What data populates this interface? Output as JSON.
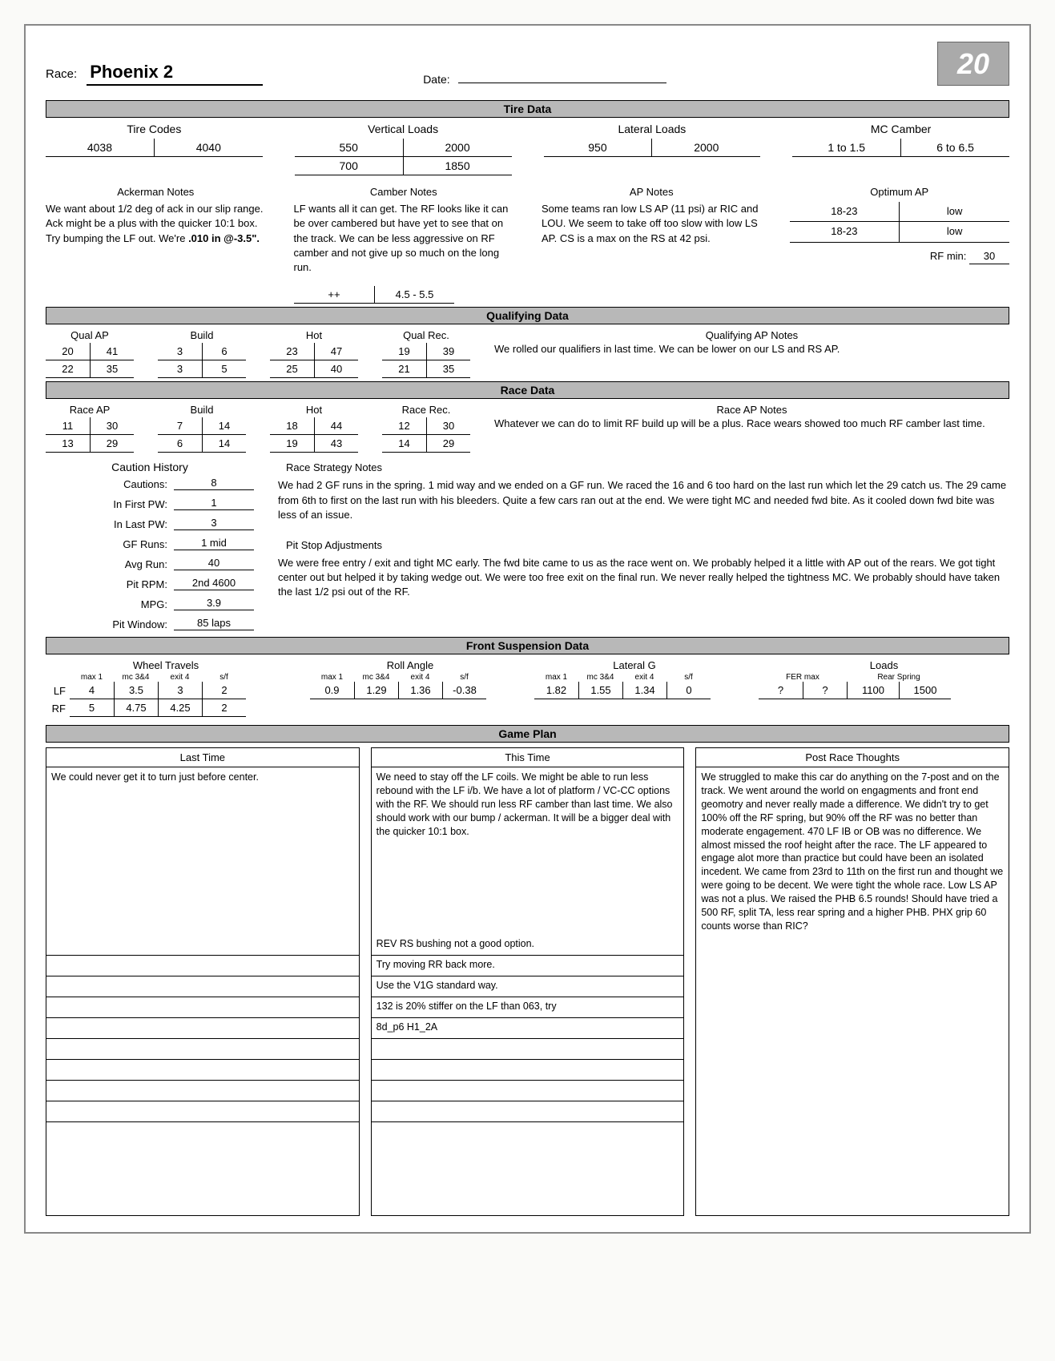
{
  "header": {
    "race_label": "Race:",
    "race_name": "Phoenix 2",
    "date_label": "Date:",
    "date_value": "",
    "car_number": "20"
  },
  "tire": {
    "section_title": "Tire Data",
    "tire_codes_title": "Tire Codes",
    "tire_codes": [
      "4038",
      "4040"
    ],
    "vertical_loads_title": "Vertical Loads",
    "vertical_loads": [
      [
        "550",
        "2000"
      ],
      [
        "700",
        "1850"
      ]
    ],
    "lateral_loads_title": "Lateral Loads",
    "lateral_loads": [
      "950",
      "2000"
    ],
    "camber_title": "MC Camber",
    "camber": [
      "1 to 1.5",
      "6 to 6.5"
    ],
    "ack_title": "Ackerman Notes",
    "ack_body": "We want about 1/2 deg of ack in our slip range. Ack might be a plus with the quicker 10:1 box. Try bumping the LF out. We're ",
    "ack_bold": ".010 in @-3.5\".",
    "cam_title": "Camber Notes",
    "cam_body": "LF wants all it can get. The RF looks like it can be over cambered but have yet to see that on the track. We can be less aggressive on RF camber and not give up so much on the long run.",
    "ap_title": "AP Notes",
    "ap_body": "Some teams ran low LS AP (11 psi) ar RIC and LOU. We seem to take off too slow with low LS AP.  CS is a max on the RS at 42 psi.",
    "optap_title": "Optimum AP",
    "optap": [
      [
        "18-23",
        "low"
      ],
      [
        "18-23",
        "low"
      ]
    ],
    "rfmin_label": "RF min:",
    "rfmin_value": "30",
    "plusplus": [
      "++",
      "4.5 - 5.5"
    ]
  },
  "qual": {
    "title": "Qualifying Data",
    "ap_title": "Qual AP",
    "ap": [
      [
        "20",
        "41"
      ],
      [
        "22",
        "35"
      ]
    ],
    "build_title": "Build",
    "build": [
      [
        "3",
        "6"
      ],
      [
        "3",
        "5"
      ]
    ],
    "hot_title": "Hot",
    "hot": [
      [
        "23",
        "47"
      ],
      [
        "25",
        "40"
      ]
    ],
    "rec_title": "Qual Rec.",
    "rec": [
      [
        "19",
        "39"
      ],
      [
        "21",
        "35"
      ]
    ],
    "notes_title": "Qualifying AP Notes",
    "notes": "We rolled our qualifiers in last time. We can be lower on our LS and RS AP."
  },
  "race": {
    "title": "Race Data",
    "ap_title": "Race AP",
    "ap": [
      [
        "11",
        "30"
      ],
      [
        "13",
        "29"
      ]
    ],
    "build_title": "Build",
    "build": [
      [
        "7",
        "14"
      ],
      [
        "6",
        "14"
      ]
    ],
    "hot_title": "Hot",
    "hot": [
      [
        "18",
        "44"
      ],
      [
        "19",
        "43"
      ]
    ],
    "rec_title": "Race Rec.",
    "rec": [
      [
        "12",
        "30"
      ],
      [
        "14",
        "29"
      ]
    ],
    "notes_title": "Race AP Notes",
    "notes": "Whatever we can do to limit RF build up will be a plus. Race wears showed too much RF camber last time."
  },
  "caution": {
    "title": "Caution History",
    "rows": [
      {
        "label": "Cautions:",
        "value": "8"
      },
      {
        "label": "In First PW:",
        "value": "1"
      },
      {
        "label": "In Last PW:",
        "value": "3"
      },
      {
        "label": "GF Runs:",
        "value": "1 mid"
      },
      {
        "label": "Avg Run:",
        "value": "40"
      },
      {
        "label": "Pit RPM:",
        "value": "2nd 4600"
      },
      {
        "label": "MPG:",
        "value": "3.9"
      },
      {
        "label": "Pit Window:",
        "value": "85 laps"
      }
    ],
    "strat_title": "Race Strategy Notes",
    "strat_body": "We had 2 GF runs in the spring. 1 mid way and we ended on a GF run. We raced the 16 and 6 too hard on the last run which let the 29 catch us. The 29 came from 6th to first on the last run with his bleeders. Quite a few cars ran out at the end. We were tight MC and needed fwd bite. As it cooled down fwd bite was less of an issue.",
    "pit_title": "Pit Stop Adjustments",
    "pit_body": "We were free entry / exit and tight MC early. The fwd bite came to us as the race went on. We probably helped it a little with AP out of the rears. We got tight center out but helped it by taking wedge out. We were too free exit on the final run. We never really helped the tightness MC. We probably should have taken the last 1/2 psi out of the RF."
  },
  "susp": {
    "title": "Front Suspension Data",
    "wheel_title": "Wheel Travels",
    "wheel_heads": [
      "max 1",
      "mc 3&4",
      "exit 4",
      "s/f"
    ],
    "wheel_lf_label": "LF",
    "wheel_rf_label": "RF",
    "wheel_lf": [
      "4",
      "3.5",
      "3",
      "2"
    ],
    "wheel_rf": [
      "5",
      "4.75",
      "4.25",
      "2"
    ],
    "roll_title": "Roll Angle",
    "roll_heads": [
      "max 1",
      "mc 3&4",
      "exit 4",
      "s/f"
    ],
    "roll": [
      "0.9",
      "1.29",
      "1.36",
      "-0.38"
    ],
    "lat_title": "Lateral G",
    "lat_heads": [
      "max 1",
      "mc 3&4",
      "exit 4",
      "s/f"
    ],
    "lat": [
      "1.82",
      "1.55",
      "1.34",
      "0"
    ],
    "loads_title": "Loads",
    "loads_heads": [
      "FER max",
      "",
      "Rear Spring",
      ""
    ],
    "loads": [
      "?",
      "?",
      "1100",
      "1500"
    ]
  },
  "game": {
    "title": "Game Plan",
    "last_title": "Last Time",
    "last_body": "We could never get it to turn just before center.",
    "this_title": "This Time",
    "this_body": "We need to stay off the LF coils. We might be able to run less rebound with the LF i/b. We have a lot of platform / VC-CC options with the RF. We should run less RF camber than last time. We also should work with our bump / ackerman. It will be a bigger deal with the quicker 10:1 box.",
    "this_notes": [
      "REV RS bushing not a good option.",
      "Try moving RR back more.",
      "Use the V1G standard way.",
      "132 is 20% stiffer on the LF than 063, try",
      "8d_p6 H1_2A",
      "",
      "",
      "",
      ""
    ],
    "post_title": "Post Race Thoughts",
    "post_body": "We struggled to make this car do anything on the 7-post and on the track. We went around the world on engagments and front end geomotry and never really made a difference. We didn't try to get 100% off the RF spring, but 90% off the RF was no better than moderate engagement. 470 LF IB or OB was no difference.  We almost missed the roof height after the race. The LF appeared to engage alot more than practice but could have been an isolated incedent. We came from 23rd to 11th on the first run and thought we were going to be decent. We were tight the whole race. Low LS AP was not a plus. We raised the PHB 6.5 rounds! Should have tried a 500 RF, split TA, less rear spring and a higher PHB. PHX grip 60 counts worse than RIC?"
  },
  "colors": {
    "bar_bg": "#b8b8b8",
    "border": "#000000"
  }
}
